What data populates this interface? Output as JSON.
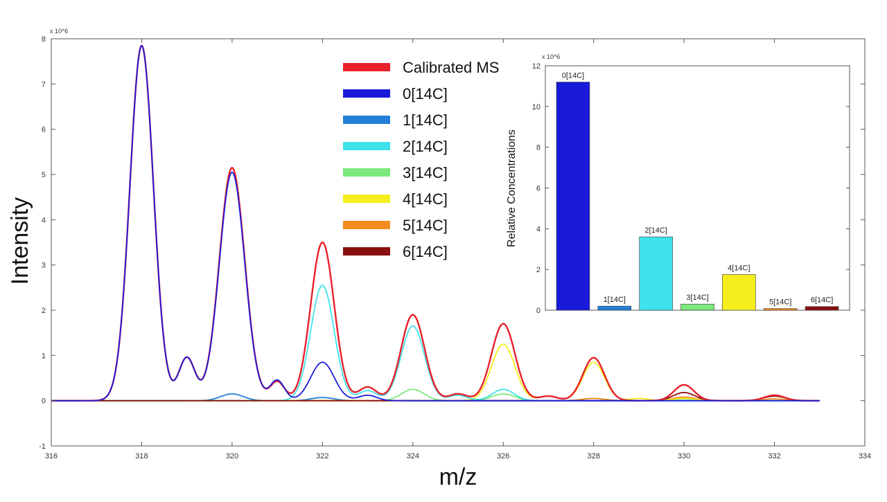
{
  "chart_data": [
    {
      "type": "line",
      "title": "",
      "xlabel": "m/z",
      "ylabel": "Intensity",
      "y_multiplier": "x 10^6",
      "xlim": [
        316,
        334
      ],
      "ylim": [
        -1,
        8
      ],
      "xticks": [
        316,
        318,
        320,
        322,
        324,
        326,
        328,
        330,
        332,
        334
      ],
      "yticks": [
        -1,
        0,
        1,
        2,
        3,
        4,
        5,
        6,
        7,
        8
      ],
      "legend": {
        "placement": "top-center"
      },
      "series": [
        {
          "name": "Calibrated MS",
          "color": "#e8202a",
          "peaks": [
            [
              318,
              7.85,
              0.26
            ],
            [
              319,
              0.95,
              0.18
            ],
            [
              320,
              5.15,
              0.28
            ],
            [
              321,
              0.42,
              0.16
            ],
            [
              322,
              3.5,
              0.26
            ],
            [
              323,
              0.3,
              0.2
            ],
            [
              324,
              1.9,
              0.26
            ],
            [
              325,
              0.15,
              0.2
            ],
            [
              326,
              1.7,
              0.26
            ],
            [
              327,
              0.1,
              0.2
            ],
            [
              328,
              0.95,
              0.24
            ],
            [
              330,
              0.35,
              0.22
            ],
            [
              332,
              0.12,
              0.22
            ]
          ]
        },
        {
          "name": "0[14C]",
          "color": "#1a1adb",
          "peaks": [
            [
              318,
              7.85,
              0.26
            ],
            [
              319,
              0.95,
              0.18
            ],
            [
              320,
              5.05,
              0.28
            ],
            [
              321,
              0.45,
              0.16
            ],
            [
              322,
              0.85,
              0.26
            ],
            [
              323,
              0.12,
              0.2
            ]
          ]
        },
        {
          "name": "1[14C]",
          "color": "#2280d8",
          "peaks": [
            [
              320,
              0.15,
              0.25
            ],
            [
              322,
              0.07,
              0.25
            ]
          ]
        },
        {
          "name": "2[14C]",
          "color": "#3fe2ea",
          "peaks": [
            [
              322,
              2.55,
              0.26
            ],
            [
              323,
              0.22,
              0.2
            ],
            [
              324,
              1.65,
              0.26
            ],
            [
              325,
              0.12,
              0.2
            ],
            [
              326,
              0.25,
              0.24
            ]
          ]
        },
        {
          "name": "3[14C]",
          "color": "#7de87d",
          "peaks": [
            [
              324,
              0.25,
              0.25
            ],
            [
              326,
              0.15,
              0.25
            ],
            [
              328,
              0.05,
              0.25
            ],
            [
              330,
              0.04,
              0.25
            ]
          ]
        },
        {
          "name": "4[14C]",
          "color": "#f5ee1c",
          "peaks": [
            [
              326,
              1.25,
              0.26
            ],
            [
              327,
              0.1,
              0.2
            ],
            [
              328,
              0.85,
              0.24
            ],
            [
              329,
              0.05,
              0.2
            ],
            [
              330,
              0.05,
              0.24
            ]
          ]
        },
        {
          "name": "5[14C]",
          "color": "#f28a1e",
          "peaks": [
            [
              328,
              0.05,
              0.25
            ],
            [
              330,
              0.08,
              0.25
            ],
            [
              332,
              0.04,
              0.25
            ]
          ]
        },
        {
          "name": "6[14C]",
          "color": "#8a1010",
          "peaks": [
            [
              330,
              0.18,
              0.24
            ],
            [
              332,
              0.1,
              0.24
            ]
          ]
        }
      ]
    },
    {
      "type": "bar",
      "title": "",
      "xlabel": "",
      "ylabel": "Relative Concentrations",
      "y_multiplier": "x 10^6",
      "ylim": [
        0,
        12
      ],
      "yticks": [
        0,
        2,
        4,
        6,
        8,
        10,
        12
      ],
      "categories": [
        "0[14C]",
        "1[14C]",
        "2[14C]",
        "3[14C]",
        "4[14C]",
        "5[14C]",
        "6[14C]"
      ],
      "values": [
        11.2,
        0.2,
        3.6,
        0.3,
        1.75,
        0.08,
        0.18
      ],
      "colors": [
        "#1a1adb",
        "#2280d8",
        "#3fe2ea",
        "#7de87d",
        "#f5ee1c",
        "#f28a1e",
        "#8a1010"
      ]
    }
  ]
}
